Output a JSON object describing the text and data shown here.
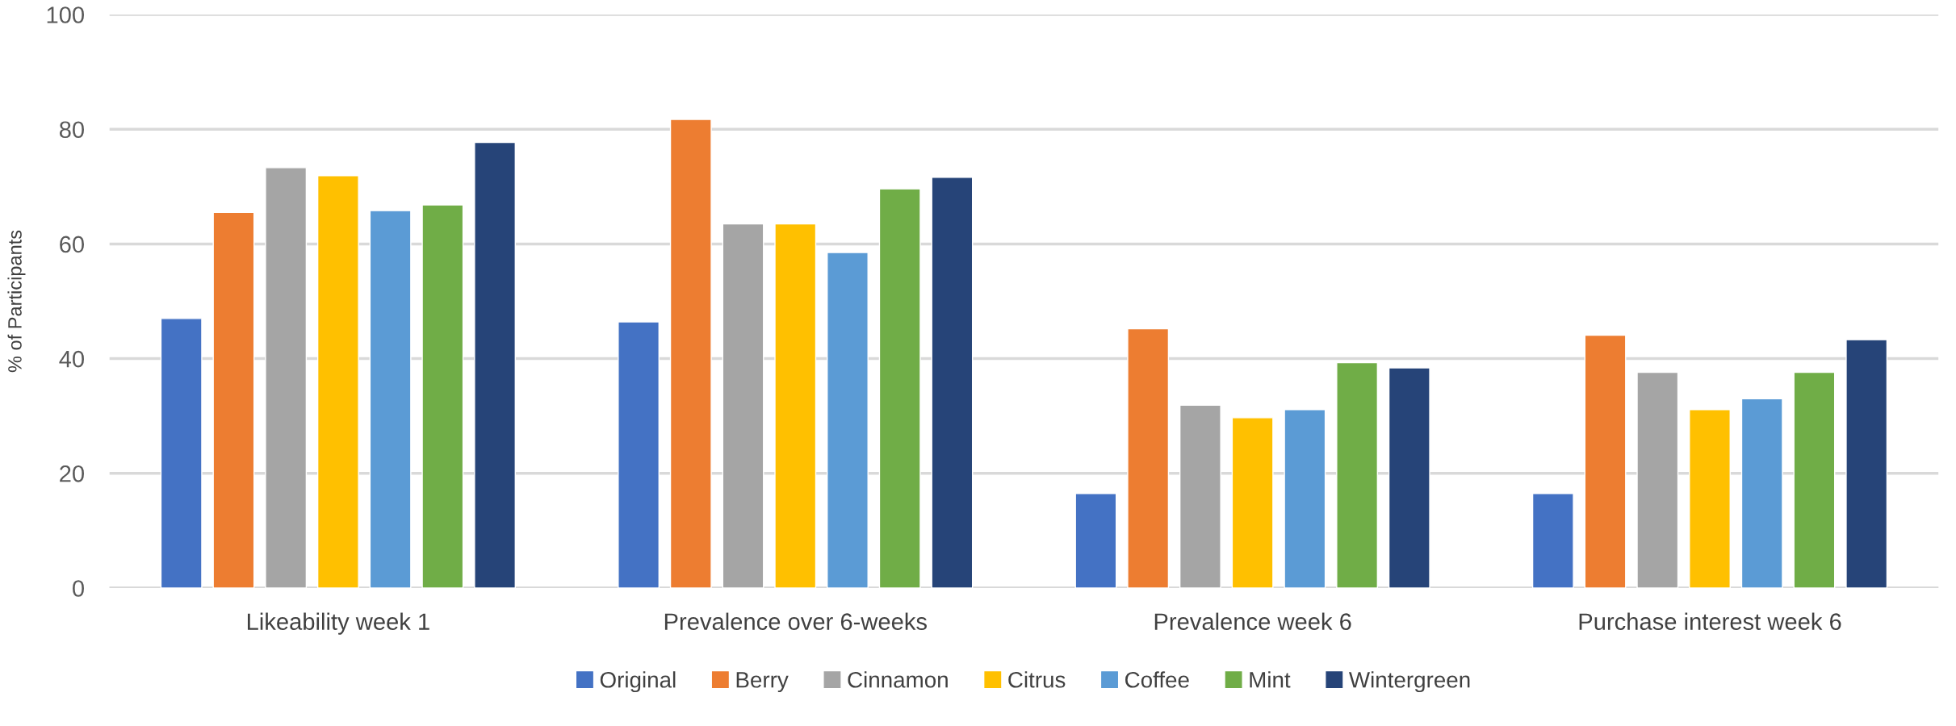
{
  "chart_data": {
    "type": "bar",
    "ylabel": "% of Participants",
    "categories": [
      "Likeability week 1",
      "Prevalence over 6-weeks",
      "Prevalence week 6",
      "Purchase interest week 6"
    ],
    "series": [
      {
        "name": "Original",
        "color": "#4472c4",
        "values": [
          47.0,
          46.4,
          16.5,
          16.5
        ]
      },
      {
        "name": "Berry",
        "color": "#ed7d31",
        "values": [
          65.5,
          81.7,
          45.2,
          44.1
        ]
      },
      {
        "name": "Cinnamon",
        "color": "#a5a5a5",
        "values": [
          73.3,
          63.5,
          31.9,
          37.6
        ]
      },
      {
        "name": "Citrus",
        "color": "#ffc000",
        "values": [
          71.9,
          63.5,
          29.7,
          31.1
        ]
      },
      {
        "name": "Coffee",
        "color": "#5b9bd5",
        "values": [
          65.8,
          58.5,
          31.1,
          33.0
        ]
      },
      {
        "name": "Mint",
        "color": "#70ad47",
        "values": [
          66.8,
          69.6,
          39.3,
          37.6
        ]
      },
      {
        "name": "Wintergreen",
        "color": "#264478",
        "values": [
          77.7,
          71.6,
          38.4,
          43.3
        ]
      }
    ],
    "ylim": [
      0,
      100
    ],
    "yticks": [
      0,
      20,
      40,
      60,
      80,
      100
    ],
    "grid": "y",
    "legend": "bottom"
  }
}
